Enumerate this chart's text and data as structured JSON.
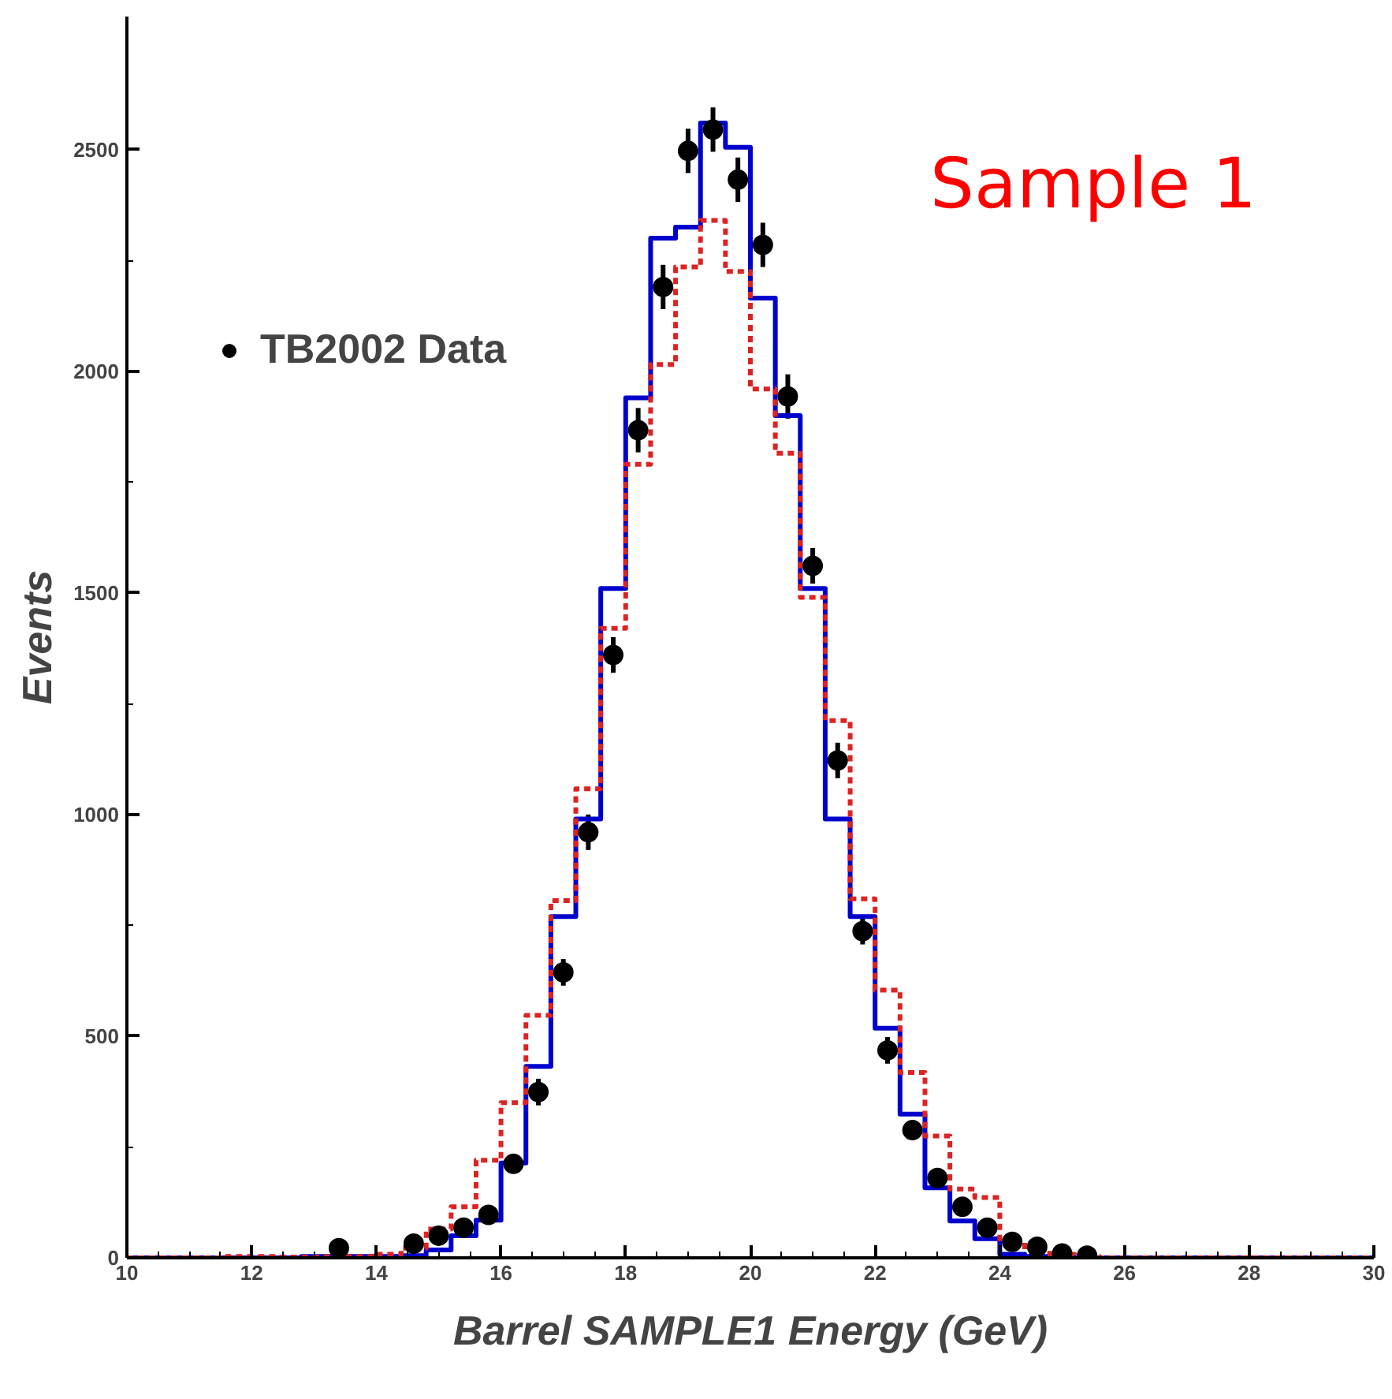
{
  "chart_data": {
    "type": "histogram",
    "xlabel": "Barrel SAMPLE1 Energy (GeV)",
    "ylabel": "Events",
    "annotations": [
      "Sample 1"
    ],
    "bins": [
      10,
      10.4,
      10.8,
      11.2,
      11.6,
      12,
      12.4,
      12.8,
      13.2,
      13.6,
      14,
      14.4,
      14.8,
      15.2,
      15.6,
      16,
      16.4,
      16.8,
      17.2,
      17.6,
      18,
      18.4,
      18.8,
      19.2,
      19.6,
      20,
      20.4,
      20.8,
      21.2,
      21.6,
      22,
      22.4,
      22.8,
      23.2,
      23.6,
      24,
      24.4,
      24.8,
      25.2,
      25.6,
      26,
      26.4,
      26.8,
      27.2,
      27.6,
      28,
      28.4,
      28.8,
      29.2,
      29.6,
      30
    ],
    "series": [
      {
        "color": "#0000cc",
        "line_style": "solid",
        "values": [
          0,
          0,
          0,
          0,
          0,
          0,
          0,
          3,
          3,
          3,
          3,
          5,
          18,
          50,
          85,
          214,
          432,
          770,
          990,
          1510,
          1940,
          2300,
          2325,
          2560,
          2505,
          2165,
          1900,
          1510,
          990,
          770,
          518,
          324,
          158,
          83,
          43,
          8,
          3,
          2,
          0,
          0,
          0,
          0,
          0,
          0,
          0,
          0,
          0,
          0,
          0,
          0
        ]
      },
      {
        "color": "#dd2222",
        "line_style": "dashed",
        "values": [
          0,
          0,
          0,
          0,
          3,
          3,
          2,
          2,
          3,
          3,
          8,
          22,
          65,
          115,
          220,
          350,
          547,
          806,
          1058,
          1420,
          1790,
          2015,
          2235,
          2340,
          2225,
          1960,
          1815,
          1490,
          1212,
          810,
          604,
          418,
          275,
          155,
          136,
          37,
          18,
          8,
          3,
          0,
          0,
          0,
          0,
          0,
          0,
          0,
          0,
          0,
          0,
          0
        ]
      },
      {
        "type": "scatter",
        "name": "TB2002 Data",
        "color": "#000000",
        "marker": "circle",
        "x": [
          13.4,
          14.6,
          15.0,
          15.4,
          15.8,
          16.2,
          16.6,
          17.0,
          17.4,
          17.8,
          18.2,
          18.6,
          19.0,
          19.4,
          19.8,
          20.2,
          20.6,
          21.0,
          21.4,
          21.8,
          22.2,
          22.6,
          23.0,
          23.4,
          23.8,
          24.2,
          24.6,
          25.0,
          25.4
        ],
        "values": [
          22,
          32,
          50,
          68,
          97,
          212,
          374,
          644,
          960,
          1360,
          1867,
          2190,
          2497,
          2545,
          2432,
          2285,
          1943,
          1561,
          1122,
          737,
          468,
          288,
          180,
          115,
          68,
          36,
          25,
          10,
          5
        ],
        "errors": [
          null,
          null,
          null,
          null,
          null,
          null,
          30,
          30,
          40,
          40,
          50,
          50,
          50,
          50,
          50,
          50,
          50,
          40,
          40,
          30,
          30,
          null,
          null,
          null,
          null,
          null,
          null,
          null,
          null
        ]
      }
    ],
    "xlim": [
      10,
      30
    ],
    "ylim": [
      0,
      2800
    ],
    "xticks": [
      10,
      12,
      14,
      16,
      18,
      20,
      22,
      24,
      26,
      28,
      30
    ],
    "yticks": [
      0,
      500,
      1000,
      1500,
      2000,
      2500
    ],
    "grid": false,
    "legend": "top left"
  }
}
